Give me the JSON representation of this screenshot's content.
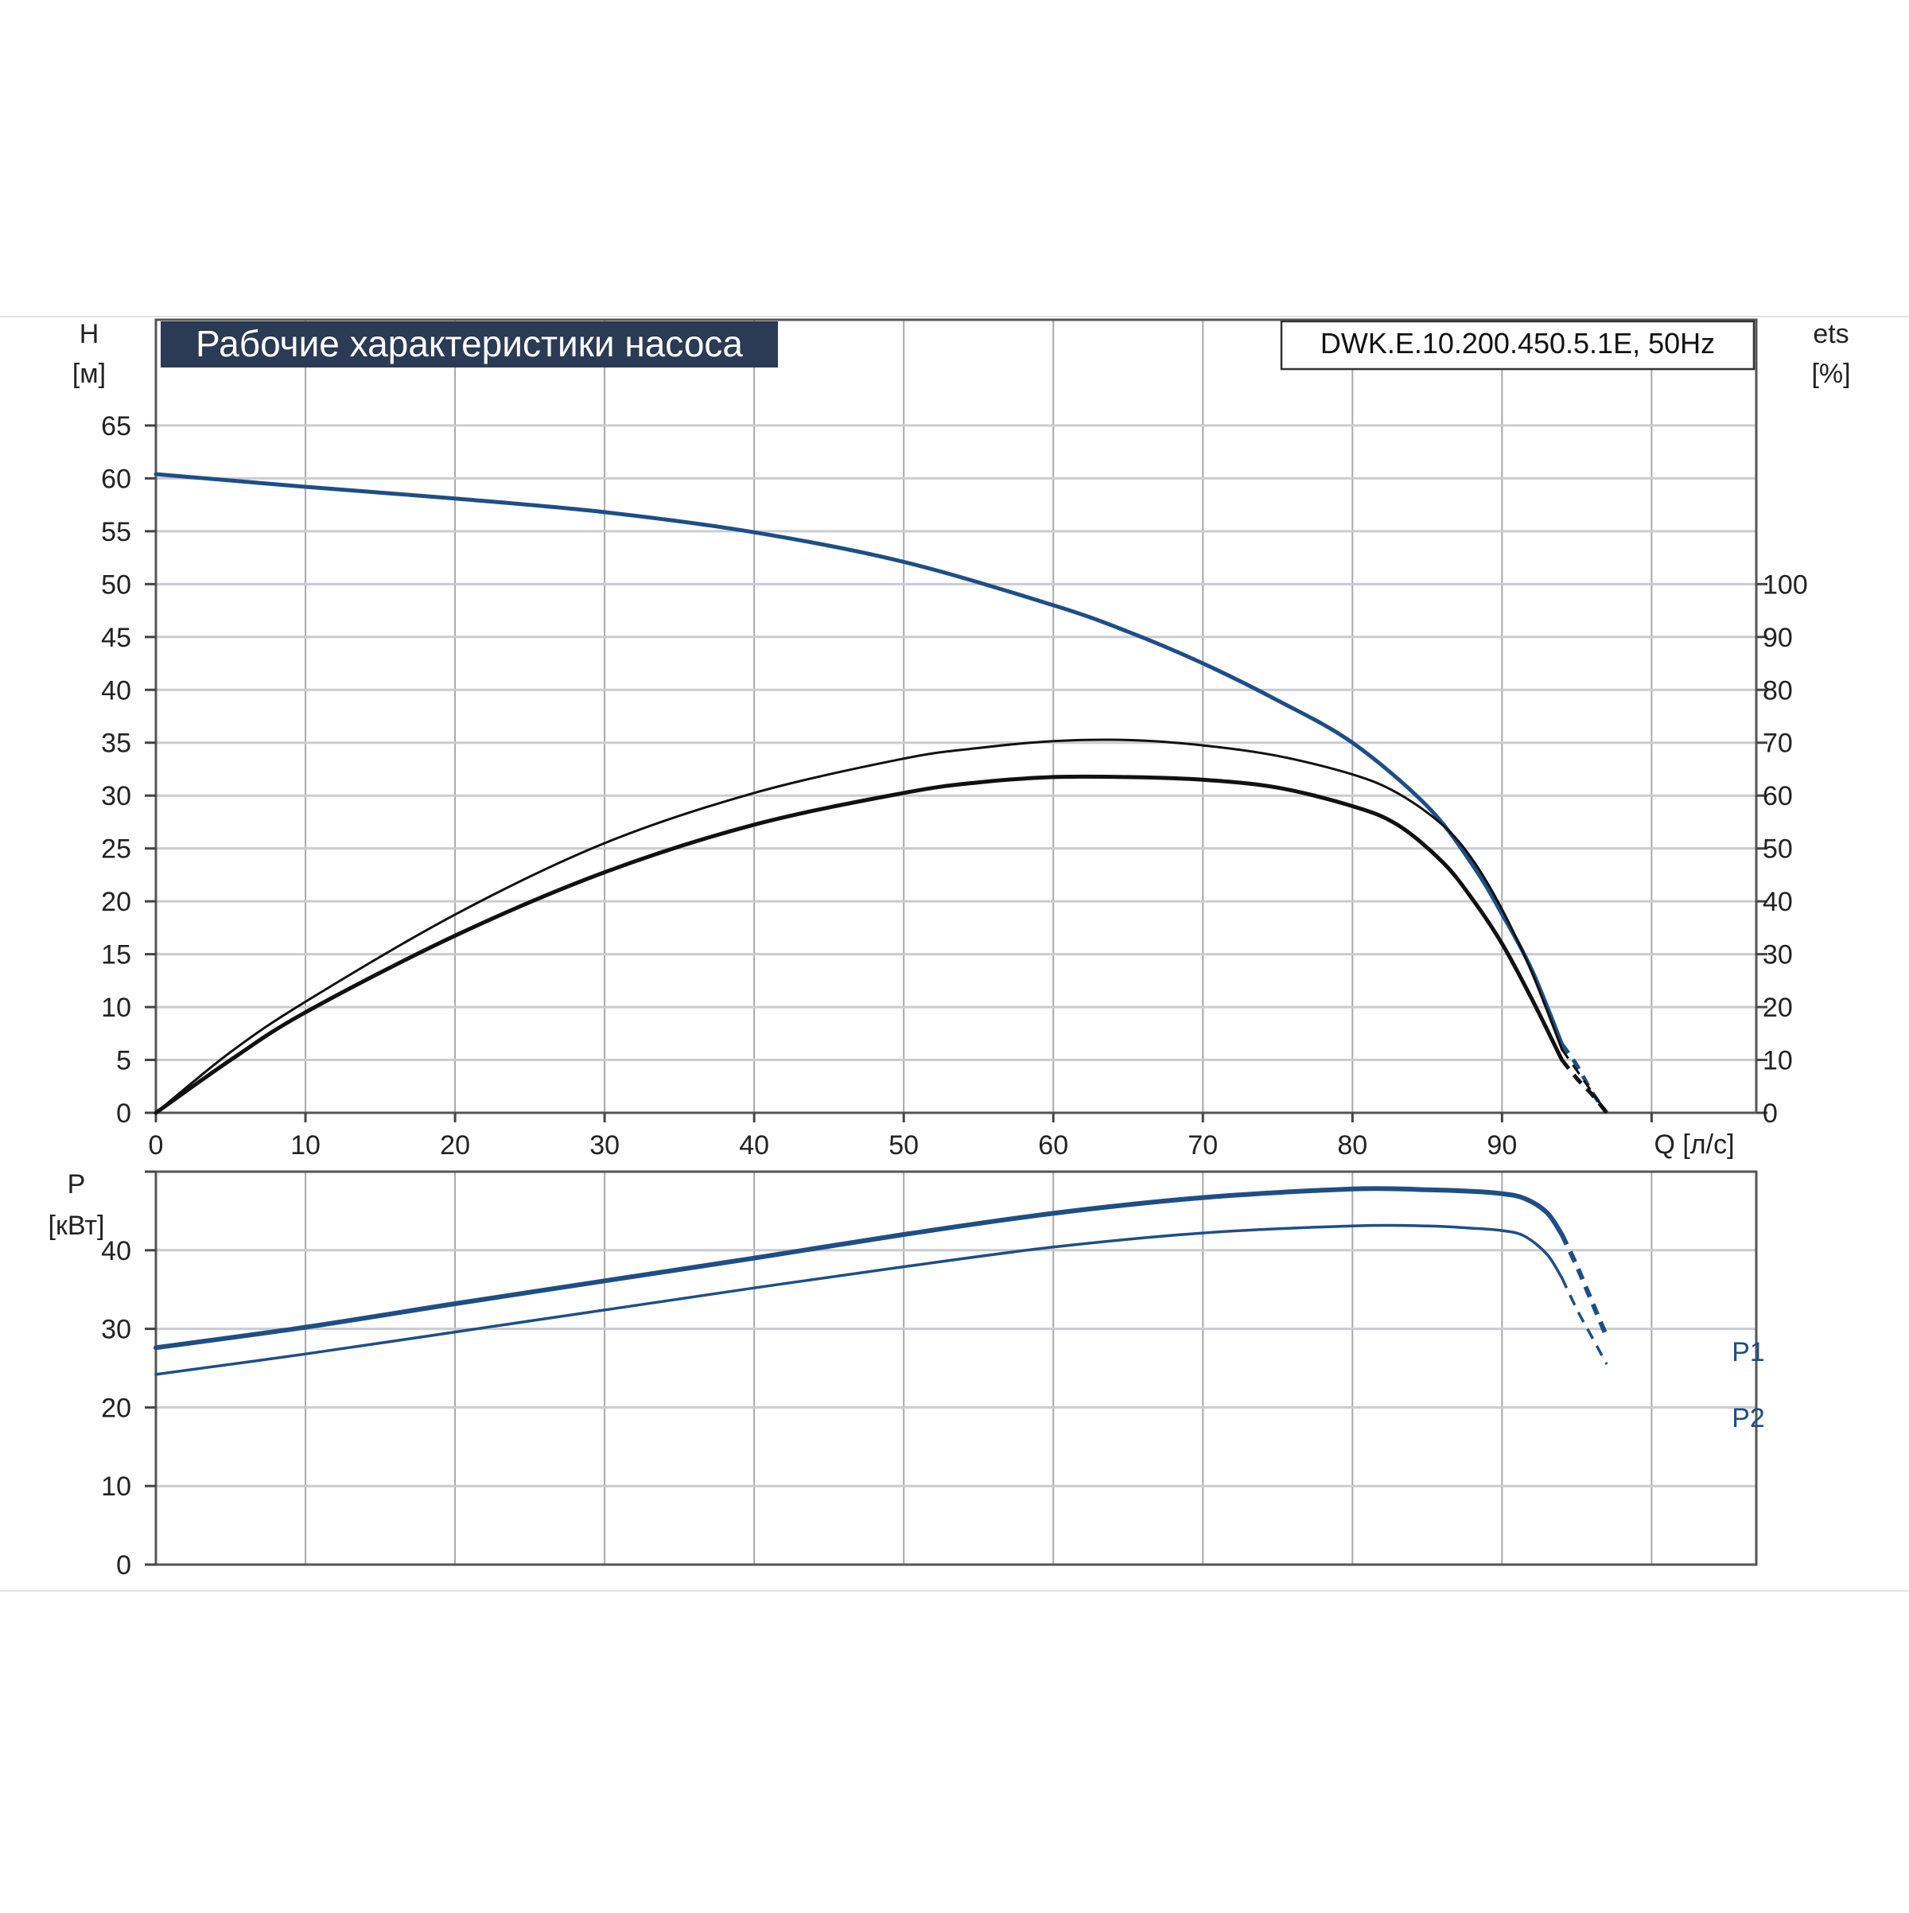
{
  "colors": {
    "blue": "#1f4e85",
    "black": "#111111",
    "title_bg": "#2b3a55"
  },
  "header": {
    "title": "Рабочие характеристики насоса",
    "model": "DWK.E.10.200.450.5.1E, 50Hz"
  },
  "chart_data": [
    {
      "type": "line",
      "y_label_line1": "H",
      "y_label_line2": "[м]",
      "y2_label_line1": "ets",
      "y2_label_line2": "[%]",
      "x_label": "Q [л/с]",
      "x_ticks": [
        "0",
        "10",
        "20",
        "30",
        "40",
        "50",
        "60",
        "70",
        "80",
        "90"
      ],
      "y_ticks": [
        "0",
        "5",
        "10",
        "15",
        "20",
        "25",
        "30",
        "35",
        "40",
        "45",
        "50",
        "55",
        "60",
        "65"
      ],
      "y2_ticks": [
        "0",
        "10",
        "20",
        "30",
        "40",
        "50",
        "60",
        "70",
        "80",
        "90",
        "100"
      ],
      "xlim": [
        0,
        107
      ],
      "ylim": [
        0,
        75
      ],
      "y2lim": [
        0,
        150
      ],
      "grid": true,
      "series": [
        {
          "key": "head",
          "axis": "y",
          "color": "#1f4e85",
          "width": 5,
          "dashed_from": 94,
          "x": [
            0,
            10,
            20,
            30,
            40,
            50,
            60,
            65,
            70,
            75,
            80,
            85,
            88,
            90,
            92,
            94,
            95,
            96,
            97
          ],
          "y": [
            60.4,
            59.2,
            58.1,
            56.8,
            54.9,
            52.1,
            48.0,
            45.5,
            42.5,
            39.0,
            35.0,
            29.0,
            23.5,
            18.8,
            13.5,
            6.5,
            4.5,
            2.0,
            0
          ]
        },
        {
          "key": "efficiency_1",
          "axis": "y2",
          "color": "#111111",
          "width": 3,
          "dashed_from": 94,
          "x": [
            0,
            5,
            10,
            20,
            30,
            40,
            50,
            55,
            60,
            65,
            70,
            75,
            80,
            83,
            86,
            88,
            90,
            92,
            94,
            95,
            96,
            97
          ],
          "y": [
            0,
            11.5,
            21.0,
            37.5,
            51.0,
            60.5,
            67.0,
            69.0,
            70.3,
            70.5,
            69.5,
            67.5,
            64.0,
            60.5,
            54.5,
            48.0,
            38.5,
            26.5,
            12.0,
            8.0,
            4.0,
            0
          ]
        },
        {
          "key": "efficiency_2",
          "axis": "y2",
          "color": "#111111",
          "width": 5,
          "dashed_from": 94,
          "x": [
            0,
            5,
            10,
            20,
            30,
            40,
            50,
            55,
            60,
            65,
            70,
            75,
            80,
            83,
            86,
            88,
            90,
            92,
            94,
            95,
            96,
            97
          ],
          "y": [
            0,
            10.0,
            19.0,
            33.5,
            45.5,
            54.5,
            60.5,
            62.5,
            63.5,
            63.5,
            63.0,
            61.5,
            58.0,
            54.5,
            47.5,
            40.5,
            32.0,
            21.5,
            10.0,
            6.5,
            3.5,
            0
          ]
        }
      ]
    },
    {
      "type": "line",
      "y_label_line1": "P",
      "y_label_line2": "[кВт]",
      "x_label": "",
      "y_ticks": [
        "0",
        "10",
        "20",
        "30",
        "40"
      ],
      "xlim": [
        0,
        107
      ],
      "ylim": [
        0,
        50
      ],
      "grid": true,
      "series": [
        {
          "key": "p1",
          "name": "P1",
          "color": "#1f4e85",
          "width": 6,
          "dashed_from": 94,
          "x": [
            0,
            10,
            20,
            30,
            40,
            50,
            60,
            70,
            80,
            85,
            88,
            90,
            91.5,
            93,
            94,
            95,
            96,
            97
          ],
          "y": [
            27.6,
            30.2,
            33.2,
            36.1,
            39.0,
            42.0,
            44.7,
            46.7,
            47.8,
            47.7,
            47.5,
            47.2,
            46.6,
            44.8,
            42.0,
            38.0,
            33.5,
            29.0
          ]
        },
        {
          "key": "p2",
          "name": "P2",
          "color": "#1f4e85",
          "width": 3.5,
          "dashed_from": 94,
          "x": [
            0,
            10,
            20,
            30,
            40,
            50,
            60,
            70,
            80,
            85,
            88,
            90,
            91.5,
            93,
            94,
            95,
            96,
            97
          ],
          "y": [
            24.2,
            26.8,
            29.6,
            32.4,
            35.2,
            37.9,
            40.4,
            42.2,
            43.1,
            43.1,
            42.8,
            42.5,
            41.8,
            39.5,
            36.5,
            32.5,
            29.0,
            25.5
          ]
        }
      ],
      "legend_labels": [
        "P1",
        "P2"
      ]
    }
  ]
}
